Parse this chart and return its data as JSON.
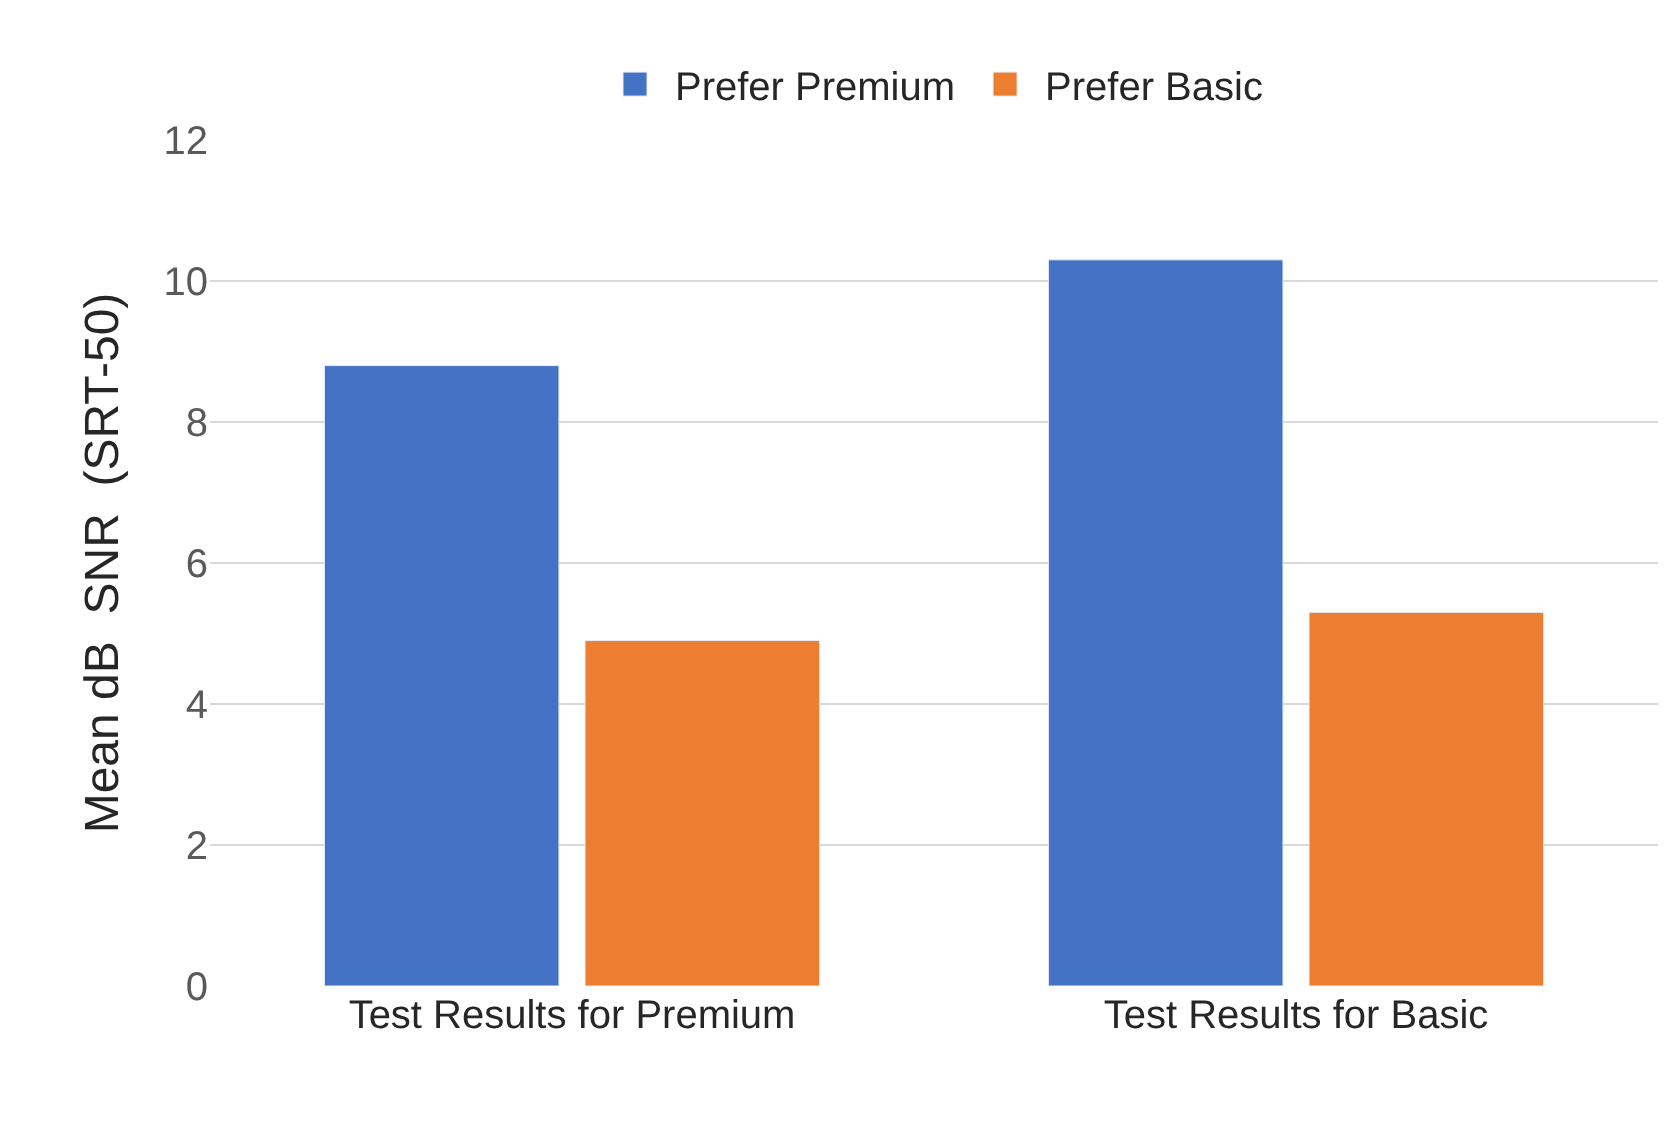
{
  "chart_data": {
    "type": "bar",
    "ylabel": "Mean dB  SNR  (SRT-50)",
    "categories": [
      "Test Results for Premium",
      "Test Results for Basic"
    ],
    "series": [
      {
        "name": "Prefer Premium",
        "color": "#4472c4",
        "values": [
          8.8,
          10.3
        ]
      },
      {
        "name": "Prefer Basic",
        "color": "#ed7d31",
        "values": [
          4.9,
          5.3
        ]
      }
    ],
    "ylim": [
      0,
      12
    ],
    "yticks": [
      0,
      2,
      4,
      6,
      8,
      10,
      12
    ],
    "grid": "y",
    "legend": "top"
  }
}
